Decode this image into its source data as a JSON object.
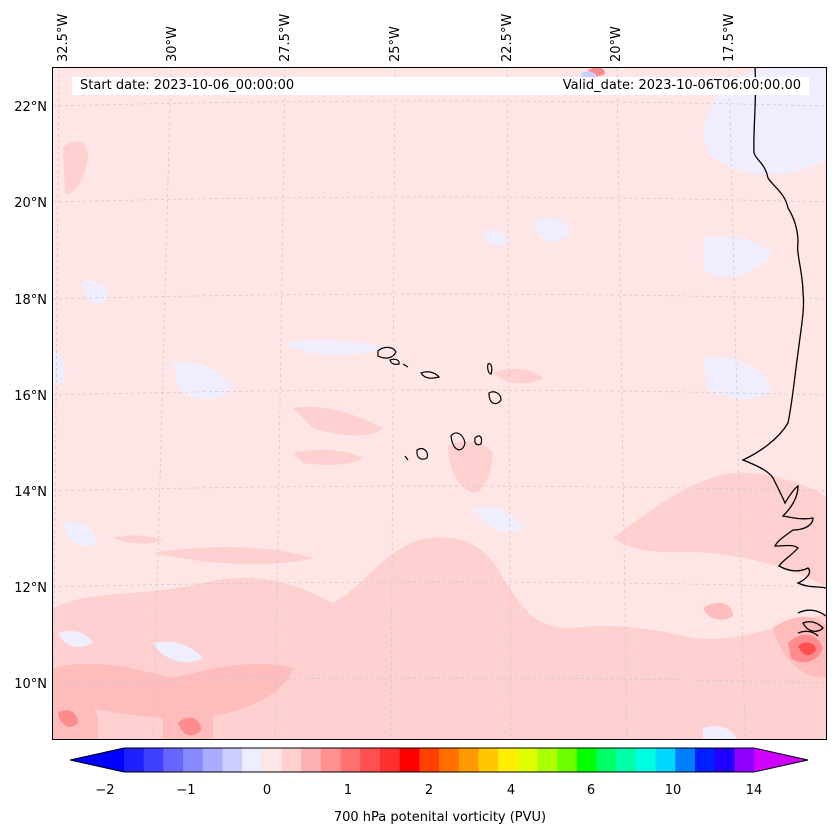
{
  "map": {
    "start_date": "Start date: 2023-10-06_00:00:00",
    "valid_date": "Valid_date: 2023-10-06T06:00:00.00",
    "lon_labels": [
      "32.5°W",
      "30°W",
      "27.5°W",
      "25°W",
      "22.5°W",
      "20°W",
      "17.5°W"
    ],
    "lat_labels": [
      "22°N",
      "20°N",
      "18°N",
      "16°N",
      "14°N",
      "12°N",
      "10°N"
    ],
    "colors": {
      "background": "#ffe6e6",
      "light_pink": "#ffd0d0",
      "pink": "#ffbcbc",
      "red_mid": "#ff8c8c",
      "red_strong": "#ff5050",
      "light_blue": "#eeeeff",
      "coast": "#000000",
      "grid": "#c8c8c8"
    }
  },
  "colorbar": {
    "label": "700 hPa potenital vorticity (PVU)",
    "tick_labels": [
      "−2",
      "−1",
      "0",
      "1",
      "2",
      "4",
      "6",
      "10",
      "14"
    ],
    "colors": [
      "#0000ff",
      "#2020ff",
      "#4040ff",
      "#6666ff",
      "#8888ff",
      "#aaaaff",
      "#ccccff",
      "#eeeeff",
      "#ffe6e6",
      "#ffd0d0",
      "#ffb0b0",
      "#ff9090",
      "#ff7070",
      "#ff5050",
      "#ff3030",
      "#ff0000",
      "#ff4000",
      "#ff7000",
      "#ff9a00",
      "#ffc800",
      "#ffee00",
      "#dfff00",
      "#aaff00",
      "#70ff00",
      "#00ff00",
      "#00ff66",
      "#00ffaa",
      "#00ffe0",
      "#00d8ff",
      "#0080ff",
      "#0020ff",
      "#2000ff",
      "#9000ff",
      "#d000ff"
    ]
  }
}
